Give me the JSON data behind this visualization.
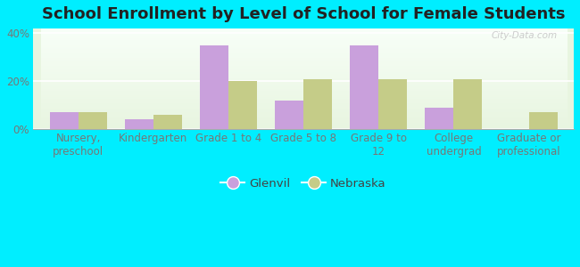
{
  "title": "School Enrollment by Level of School for Female Students",
  "categories": [
    "Nursery,\npreschool",
    "Kindergarten",
    "Grade 1 to 4",
    "Grade 5 to 8",
    "Grade 9 to\n12",
    "College\nundergrad",
    "Graduate or\nprofessional"
  ],
  "glenvil": [
    7,
    4,
    35,
    12,
    35,
    9,
    0
  ],
  "nebraska": [
    7,
    6,
    20,
    21,
    21,
    21,
    7
  ],
  "bar_color_glenvil": "#c9a0dc",
  "bar_color_nebraska": "#c5cc88",
  "background_outer": "#00eeff",
  "ylim": [
    0,
    42
  ],
  "yticks": [
    0,
    20,
    40
  ],
  "ytick_labels": [
    "0%",
    "20%",
    "40%"
  ],
  "legend_labels": [
    "Glenvil",
    "Nebraska"
  ],
  "title_fontsize": 13,
  "tick_fontsize": 8.5,
  "legend_fontsize": 9.5,
  "bar_width": 0.38,
  "watermark": "City-Data.com"
}
